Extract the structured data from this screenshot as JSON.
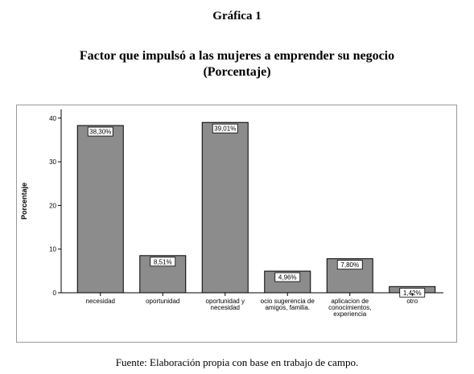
{
  "figure_number": "Gráfica 1",
  "title_line1": "Factor que impulsó a las mujeres a emprender su negocio",
  "title_line2": "(Porcentaje)",
  "source_note": "Fuente: Elaboración propia con base en trabajo de campo.",
  "chart_data": {
    "type": "bar",
    "ylabel": "Porcentaje",
    "xlabel": "",
    "ylim": [
      0,
      42
    ],
    "yticks": [
      0,
      10,
      20,
      30,
      40
    ],
    "grid": false,
    "categories": [
      [
        "necesidad"
      ],
      [
        "oportunidad"
      ],
      [
        "oportunidad y",
        "necesidad"
      ],
      [
        "ocio sugerencia de",
        "amigos, familia."
      ],
      [
        "aplicacion de",
        "conocimientos,",
        "experiencia"
      ],
      [
        "otro"
      ]
    ],
    "values": [
      38.3,
      8.51,
      39.01,
      4.96,
      7.8,
      1.42
    ],
    "data_labels": [
      "38,30%",
      "8,51%",
      "39,01%",
      "4,96%",
      "7,80%",
      "1,42%"
    ],
    "bar_color": "#8c8c8c"
  }
}
